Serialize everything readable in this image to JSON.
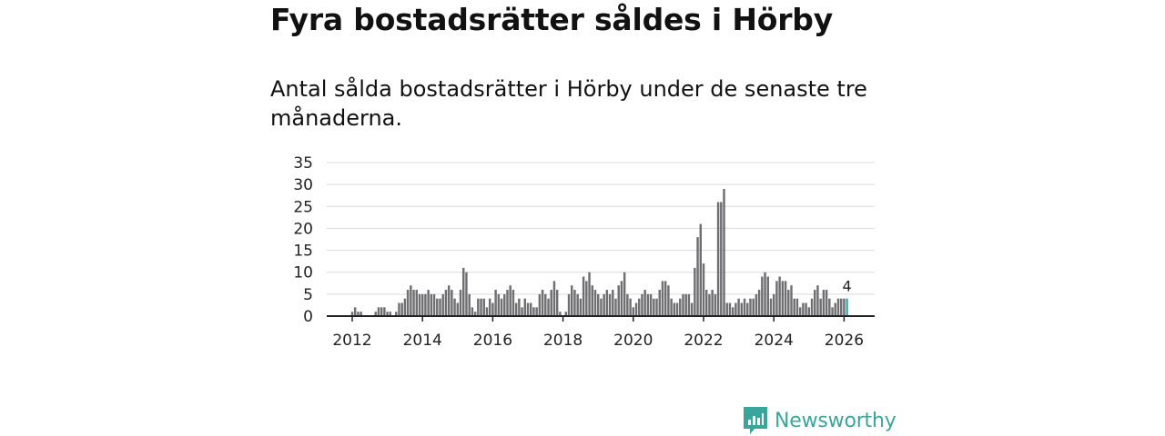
{
  "header": {
    "title": "Fyra bostadsrätter såldes i Hörby",
    "subtitle": "Antal sålda bostadsrätter i Hörby under de senaste tre månaderna."
  },
  "brand": {
    "name": "Newsworthy",
    "color": "#3aa59b"
  },
  "colors": {
    "bar": "#6f6f73",
    "highlight": "#2bb5a6",
    "grid": "#d9d9d9",
    "axis": "#222222"
  },
  "chart_data": {
    "type": "bar",
    "title": "Fyra bostadsrätter såldes i Hörby",
    "xlabel": "",
    "ylabel": "",
    "start": {
      "year": 2012,
      "month": 1
    },
    "frequency": "monthly",
    "x_ticks": [
      "2012",
      "2014",
      "2016",
      "2018",
      "2020",
      "2022",
      "2024",
      "2026"
    ],
    "y_ticks": [
      "0",
      "5",
      "10",
      "15",
      "20",
      "25",
      "30",
      "35"
    ],
    "ylim": [
      0,
      35
    ],
    "grid": true,
    "values": [
      1,
      2,
      1,
      1,
      0,
      0,
      0,
      0,
      1,
      2,
      2,
      2,
      1,
      1,
      0,
      1,
      3,
      3,
      4,
      6,
      7,
      6,
      6,
      5,
      5,
      5,
      6,
      5,
      5,
      4,
      4,
      5,
      6,
      7,
      6,
      4,
      3,
      6,
      11,
      10,
      5,
      2,
      1,
      4,
      4,
      4,
      2,
      4,
      3,
      6,
      5,
      4,
      5,
      6,
      7,
      6,
      3,
      4,
      2,
      4,
      3,
      3,
      2,
      2,
      5,
      6,
      5,
      4,
      6,
      8,
      6,
      1,
      0,
      1,
      5,
      7,
      6,
      5,
      4,
      9,
      8,
      10,
      7,
      6,
      5,
      4,
      5,
      6,
      5,
      6,
      4,
      7,
      8,
      10,
      5,
      4,
      2,
      3,
      4,
      5,
      6,
      5,
      5,
      4,
      4,
      6,
      8,
      8,
      7,
      4,
      3,
      3,
      4,
      5,
      5,
      5,
      3,
      11,
      18,
      21,
      12,
      6,
      5,
      6,
      5,
      26,
      26,
      29,
      3,
      3,
      2,
      3,
      4,
      3,
      4,
      3,
      4,
      4,
      5,
      6,
      9,
      10,
      9,
      4,
      5,
      8,
      9,
      8,
      8,
      6,
      7,
      4,
      4,
      2,
      3,
      3,
      2,
      4,
      6,
      7,
      4,
      6,
      6,
      4,
      2,
      3,
      4,
      4,
      4,
      4
    ],
    "highlight_index": 169,
    "data_labels": [
      {
        "index": 169,
        "text": "4"
      }
    ]
  }
}
